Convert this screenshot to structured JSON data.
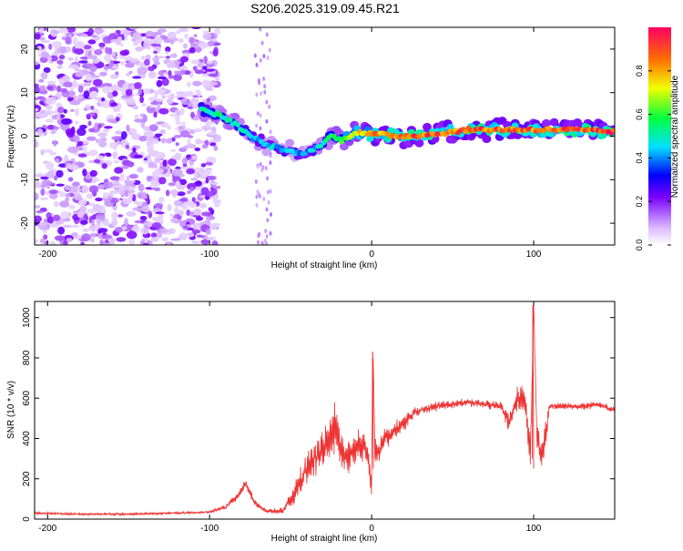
{
  "title": "S206.2025.319.09.45.R21",
  "chart_data": [
    {
      "type": "heatmap",
      "name": "spectrogram",
      "xlabel": "Height of straight line (km)",
      "ylabel": "Frequency (Hz)",
      "xlim": [
        -208,
        150
      ],
      "ylim": [
        -25,
        25
      ],
      "xticks": [
        "-200",
        "-100",
        "0",
        "100"
      ],
      "xtick_values": [
        -200,
        -100,
        0,
        100
      ],
      "yticks": [
        "-20",
        "-10",
        "0",
        "10",
        "20"
      ],
      "ytick_values": [
        -20,
        -10,
        0,
        10,
        20
      ],
      "colorbar": {
        "label": "Normalized spectral amplitude",
        "range": [
          0,
          1
        ],
        "ticks": [
          "0.0",
          "0.2",
          "0.4",
          "0.6",
          "0.8"
        ],
        "tick_values": [
          0.0,
          0.2,
          0.4,
          0.6,
          0.8
        ]
      },
      "ridge": {
        "x": [
          -105,
          -95,
          -85,
          -75,
          -65,
          -55,
          -45,
          -35,
          -25,
          -18,
          -10,
          0,
          20,
          40,
          60,
          80,
          100,
          120,
          150
        ],
        "freq": [
          6,
          5,
          3,
          0,
          -2,
          -3,
          -4,
          -3,
          0,
          -1,
          1,
          0.5,
          0,
          0.5,
          1.5,
          1.5,
          1.5,
          1.5,
          1
        ],
        "amplitude": [
          0.5,
          0.55,
          0.55,
          0.45,
          0.45,
          0.45,
          0.4,
          0.45,
          0.55,
          0.65,
          0.75,
          0.85,
          0.9,
          0.9,
          0.9,
          0.9,
          0.9,
          0.9,
          0.95
        ]
      },
      "noise": {
        "region_x": [
          -208,
          -95
        ],
        "amplitude_range": [
          0.05,
          0.25
        ]
      }
    },
    {
      "type": "line",
      "name": "snr",
      "xlabel": "Height of straight line (km)",
      "ylabel": "SNR (10 * v/v)",
      "xlim": [
        -208,
        150
      ],
      "ylim": [
        0,
        1080
      ],
      "xticks": [
        "-200",
        "-100",
        "0",
        "100"
      ],
      "xtick_values": [
        -200,
        -100,
        0,
        100
      ],
      "yticks": [
        "0",
        "200",
        "400",
        "600",
        "800",
        "1000"
      ],
      "ytick_values": [
        0,
        200,
        400,
        600,
        800,
        1000
      ],
      "color": "#ee3333",
      "series": [
        {
          "name": "SNR",
          "x": [
            -208,
            -180,
            -150,
            -120,
            -100,
            -90,
            -82,
            -78,
            -72,
            -65,
            -55,
            -48,
            -40,
            -35,
            -30,
            -25,
            -22,
            -20,
            -18,
            -15,
            -10,
            -5,
            -2,
            0,
            1,
            2,
            5,
            10,
            15,
            20,
            25,
            30,
            40,
            50,
            60,
            70,
            80,
            85,
            90,
            95,
            98,
            100,
            102,
            105,
            110,
            120,
            130,
            140,
            150
          ],
          "y": [
            30,
            25,
            25,
            30,
            35,
            60,
            120,
            180,
            80,
            40,
            40,
            120,
            250,
            300,
            350,
            400,
            450,
            350,
            320,
            300,
            350,
            380,
            300,
            150,
            830,
            320,
            350,
            420,
            440,
            480,
            520,
            540,
            560,
            570,
            580,
            570,
            560,
            480,
            600,
            580,
            300,
            1060,
            400,
            300,
            560,
            560,
            560,
            570,
            540
          ],
          "spread": [
            10,
            10,
            10,
            10,
            10,
            20,
            40,
            40,
            30,
            15,
            30,
            80,
            150,
            200,
            200,
            200,
            250,
            200,
            200,
            180,
            150,
            150,
            150,
            100,
            0,
            150,
            120,
            100,
            80,
            70,
            60,
            50,
            40,
            40,
            40,
            40,
            40,
            100,
            100,
            150,
            200,
            0,
            200,
            150,
            40,
            30,
            30,
            30,
            30
          ]
        }
      ]
    }
  ]
}
